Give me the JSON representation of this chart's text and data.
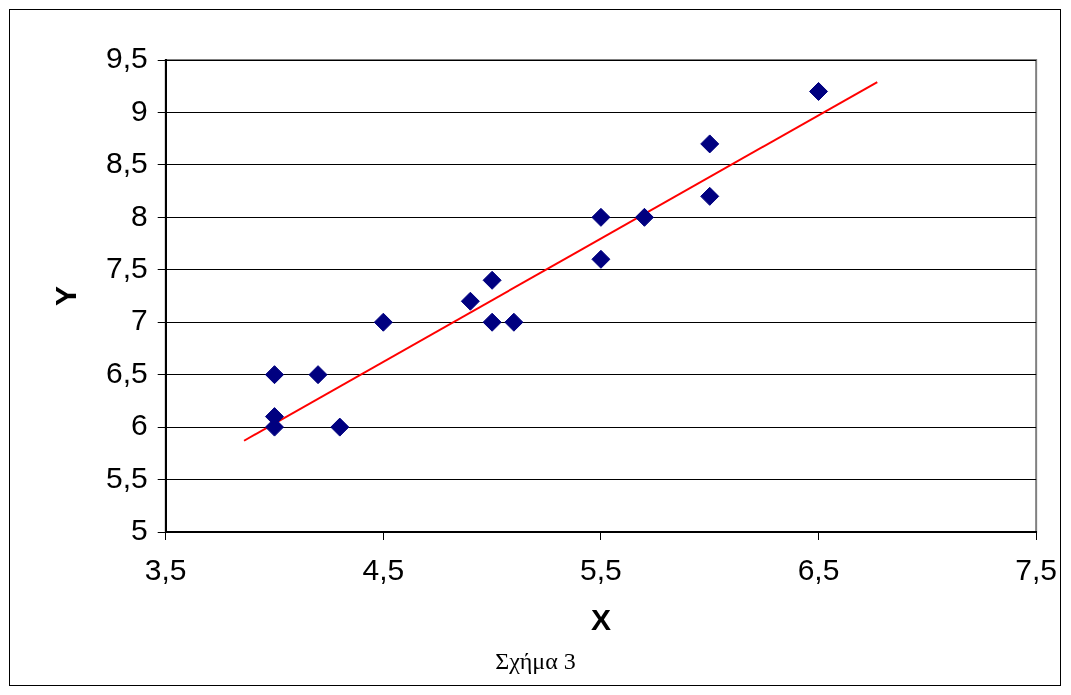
{
  "chart_data": {
    "type": "scatter",
    "xlabel": "X",
    "ylabel": "Y",
    "annotations": [
      "Σχήμα 3"
    ],
    "xlim": [
      3.5,
      7.5
    ],
    "xticks": [
      {
        "value": 3.5,
        "label": "3,5"
      },
      {
        "value": 4.5,
        "label": "4,5"
      },
      {
        "value": 5.5,
        "label": "5,5"
      },
      {
        "value": 6.5,
        "label": "6,5"
      },
      {
        "value": 7.5,
        "label": "7,5"
      }
    ],
    "ylim": [
      5,
      9.5
    ],
    "yticks": [
      5,
      {
        "value": 5.5,
        "label": "5,5"
      },
      6,
      {
        "value": 6.5,
        "label": "6,5"
      },
      7,
      {
        "value": 7.5,
        "label": "7,5"
      },
      8,
      {
        "value": 8.5,
        "label": "8,5"
      },
      9,
      {
        "value": 9.5,
        "label": "9,5"
      }
    ],
    "grid": "y",
    "legend": false,
    "marker": "diamond",
    "series": [
      {
        "color": "#000080",
        "x": [
          4,
          4,
          4,
          4.2,
          4.3,
          4.5,
          4.9,
          5,
          5,
          5.1,
          5.5,
          5.5,
          5.7,
          6,
          6,
          6.5
        ],
        "values": [
          6.5,
          6.1,
          6,
          6.5,
          6,
          7,
          7.2,
          7.4,
          7,
          7,
          8,
          7.6,
          8,
          8.7,
          8.2,
          9.2
        ]
      },
      {
        "type": "line",
        "color": "#ff0000",
        "x": [
          3.86,
          6.77
        ],
        "values": [
          5.87,
          9.29
        ],
        "marker": "none"
      }
    ]
  }
}
